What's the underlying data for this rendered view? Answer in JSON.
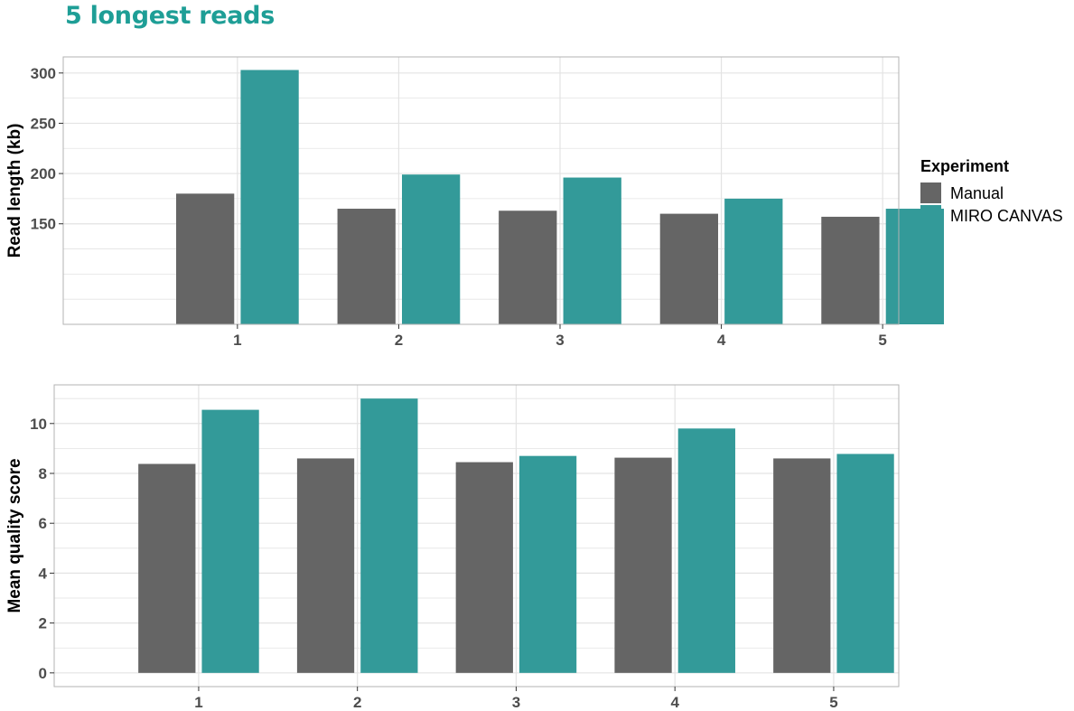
{
  "title": "5 longest reads",
  "colors": {
    "title": "#1e9e96",
    "manual": "#656565",
    "miro": "#339a99",
    "grid": "#e3e3e3",
    "panel_border": "#b3b3b3"
  },
  "legend": {
    "title": "Experiment",
    "items": [
      {
        "label": "Manual",
        "color": "#656565"
      },
      {
        "label": "MIRO CANVAS",
        "color": "#339a99"
      }
    ]
  },
  "chart_data": [
    {
      "type": "bar",
      "title": "",
      "xlabel": "",
      "ylabel": "Read length (kb)",
      "categories": [
        "1",
        "2",
        "3",
        "4",
        "5"
      ],
      "ylim": [
        50,
        316
      ],
      "ybase": 50,
      "yticks": [
        150,
        200,
        250,
        300
      ],
      "grid": true,
      "series": [
        {
          "name": "Manual",
          "values": [
            180,
            165,
            163,
            160,
            157
          ]
        },
        {
          "name": "MIRO CANVAS",
          "values": [
            303,
            199,
            196,
            175,
            165
          ]
        }
      ]
    },
    {
      "type": "bar",
      "title": "",
      "xlabel": "",
      "ylabel": "Mean quality score",
      "categories": [
        "1",
        "2",
        "3",
        "4",
        "5"
      ],
      "ylim": [
        -0.55,
        11.55
      ],
      "ybase": 0,
      "yticks": [
        0,
        2,
        4,
        6,
        8,
        10
      ],
      "grid": true,
      "series": [
        {
          "name": "Manual",
          "values": [
            8.38,
            8.6,
            8.45,
            8.63,
            8.6
          ]
        },
        {
          "name": "MIRO CANVAS",
          "values": [
            10.55,
            11.0,
            8.7,
            9.8,
            8.78
          ]
        }
      ]
    }
  ]
}
